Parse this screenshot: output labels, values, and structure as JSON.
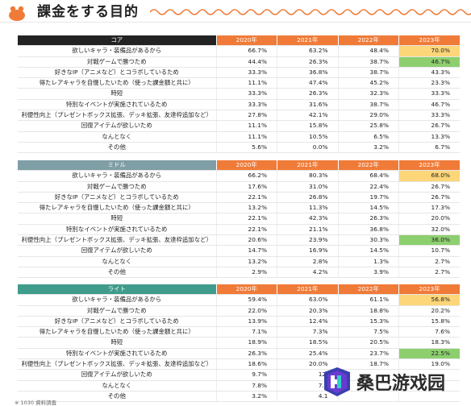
{
  "page_title": "課金をする目的",
  "columns": [
    "2020年",
    "2021年",
    "2022年",
    "2023年"
  ],
  "colors": {
    "core": "#232323",
    "middle": "#7f9ea5",
    "light": "#3f9c8c",
    "year_header": "#f07b38",
    "highlight_yellow": "#fcd679",
    "highlight_green": "#8dcf6f"
  },
  "tables": [
    {
      "name": "コア",
      "rows": [
        {
          "label": "欲しいキャラ・装備品があるから",
          "values": [
            "66.7%",
            "63.2%",
            "48.4%",
            "70.0%"
          ],
          "hl": "yellow"
        },
        {
          "label": "対戦ゲームで勝つため",
          "values": [
            "44.4%",
            "26.3%",
            "38.7%",
            "46.7%"
          ],
          "hl": "green"
        },
        {
          "label": "好きなIP（アニメなど）とコラボしているため",
          "values": [
            "33.3%",
            "36.8%",
            "38.7%",
            "43.3%"
          ],
          "hl": ""
        },
        {
          "label": "得たレアキャラを自慢したいため（使った課金額と共に）",
          "values": [
            "11.1%",
            "47.4%",
            "45.2%",
            "23.3%"
          ],
          "hl": ""
        },
        {
          "label": "時短",
          "values": [
            "33.3%",
            "26.3%",
            "32.3%",
            "33.3%"
          ],
          "hl": ""
        },
        {
          "label": "特別なイベントが実施されているため",
          "values": [
            "33.3%",
            "31.6%",
            "38.7%",
            "46.7%"
          ],
          "hl": ""
        },
        {
          "label": "利便性向上（プレゼントボックス拡張、デッキ拡張、友達枠追加など）",
          "values": [
            "27.8%",
            "42.1%",
            "29.0%",
            "33.3%"
          ],
          "hl": ""
        },
        {
          "label": "回復アイテムが欲しいため",
          "values": [
            "11.1%",
            "15.8%",
            "25.8%",
            "26.7%"
          ],
          "hl": ""
        },
        {
          "label": "なんとなく",
          "values": [
            "11.1%",
            "10.5%",
            "6.5%",
            "13.3%"
          ],
          "hl": ""
        },
        {
          "label": "その他",
          "values": [
            "5.6%",
            "0.0%",
            "3.2%",
            "6.7%"
          ],
          "hl": ""
        }
      ]
    },
    {
      "name": "ミドル",
      "rows": [
        {
          "label": "欲しいキャラ・装備品があるから",
          "values": [
            "66.2%",
            "80.3%",
            "68.4%",
            "68.0%"
          ],
          "hl": "yellow"
        },
        {
          "label": "対戦ゲームで勝つため",
          "values": [
            "17.6%",
            "31.0%",
            "22.4%",
            "26.7%"
          ],
          "hl": ""
        },
        {
          "label": "好きなIP（アニメなど）とコラボしているため",
          "values": [
            "22.1%",
            "26.8%",
            "19.7%",
            "26.7%"
          ],
          "hl": ""
        },
        {
          "label": "得たレアキャラを自慢したいため（使った課金額と共に）",
          "values": [
            "13.2%",
            "11.3%",
            "14.5%",
            "17.3%"
          ],
          "hl": ""
        },
        {
          "label": "時短",
          "values": [
            "22.1%",
            "42.3%",
            "26.3%",
            "20.0%"
          ],
          "hl": ""
        },
        {
          "label": "特別なイベントが実施されているため",
          "values": [
            "22.1%",
            "21.1%",
            "36.8%",
            "32.0%"
          ],
          "hl": ""
        },
        {
          "label": "利便性向上（プレゼントボックス拡張、デッキ拡張、友達枠追加など）",
          "values": [
            "20.6%",
            "23.9%",
            "30.3%",
            "36.0%"
          ],
          "hl": "green"
        },
        {
          "label": "回復アイテムが欲しいため",
          "values": [
            "14.7%",
            "16.9%",
            "14.5%",
            "10.7%"
          ],
          "hl": ""
        },
        {
          "label": "なんとなく",
          "values": [
            "13.2%",
            "2.8%",
            "1.3%",
            "2.7%"
          ],
          "hl": ""
        },
        {
          "label": "その他",
          "values": [
            "2.9%",
            "4.2%",
            "3.9%",
            "2.7%"
          ],
          "hl": ""
        }
      ]
    },
    {
      "name": "ライト",
      "rows": [
        {
          "label": "欲しいキャラ・装備品があるから",
          "values": [
            "59.4%",
            "63.0%",
            "61.1%",
            "56.8%"
          ],
          "hl": "yellow"
        },
        {
          "label": "対戦ゲームで勝つため",
          "values": [
            "22.0%",
            "20.3%",
            "18.8%",
            "20.2%"
          ],
          "hl": ""
        },
        {
          "label": "好きなIP（アニメなど）とコラボしているため",
          "values": [
            "13.9%",
            "12.4%",
            "15.3%",
            "15.8%"
          ],
          "hl": ""
        },
        {
          "label": "得たレアキャラを自慢したいため（使った課金額と共に）",
          "values": [
            "7.1%",
            "7.3%",
            "7.5%",
            "7.6%"
          ],
          "hl": ""
        },
        {
          "label": "時短",
          "values": [
            "18.9%",
            "18.5%",
            "20.5%",
            "18.3%"
          ],
          "hl": ""
        },
        {
          "label": "特別なイベントが実施されているため",
          "values": [
            "26.3%",
            "25.4%",
            "23.7%",
            "22.5%"
          ],
          "hl": "green"
        },
        {
          "label": "利便性向上（プレゼントボックス拡張、デッキ拡張、友達枠追加など）",
          "values": [
            "18.6%",
            "20.0%",
            "18.7%",
            "19.0%"
          ],
          "hl": ""
        },
        {
          "label": "回復アイテムが欲しいため",
          "values": [
            "9.7%",
            "12.",
            "",
            ""
          ],
          "hl": ""
        },
        {
          "label": "なんとなく",
          "values": [
            "7.8%",
            "7.7",
            "",
            ""
          ],
          "hl": ""
        },
        {
          "label": "その他",
          "values": [
            "3.2%",
            "4.1",
            "",
            ""
          ],
          "hl": ""
        }
      ]
    }
  ],
  "source_note": "※ 1030 資料調査",
  "watermark": {
    "text": "桑巴游戏园",
    "icon": "zb-logo-icon"
  },
  "logo": {
    "icon": "orange-blob-logo-icon"
  }
}
